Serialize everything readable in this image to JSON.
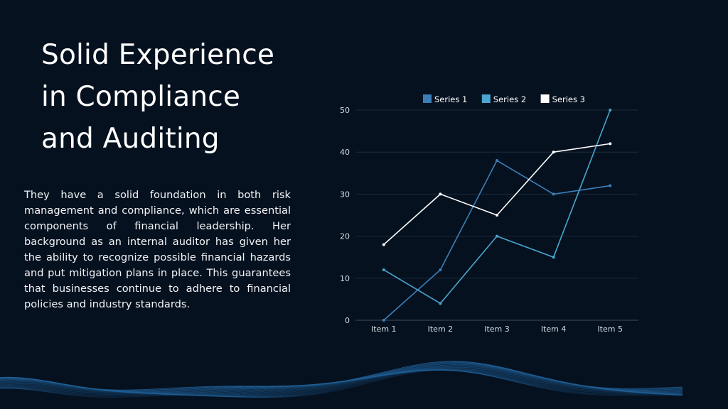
{
  "slide": {
    "title": "Solid Experience\nin Compliance\nand Auditing",
    "body": "They have a solid foundation in both risk management and compliance, which are essential components of financial leadership. Her background as an internal auditor has given her the ability to recognize possible financial hazards and put mitigation plans in place. This guarantees that businesses continue to adhere to financial policies and industry standards."
  },
  "chart_data": {
    "type": "line",
    "categories": [
      "Item 1",
      "Item 2",
      "Item 3",
      "Item 4",
      "Item 5"
    ],
    "series": [
      {
        "name": "Series 1",
        "values": [
          0,
          12,
          38,
          30,
          32
        ],
        "color": "#3b7fb8"
      },
      {
        "name": "Series 2",
        "values": [
          12,
          4,
          20,
          15,
          50
        ],
        "color": "#4aa6d0"
      },
      {
        "name": "Series 3",
        "values": [
          18,
          30,
          25,
          40,
          42
        ],
        "color": "#ffffff"
      }
    ],
    "ylim": [
      0,
      50
    ],
    "yticks": [
      0,
      10,
      20,
      30,
      40,
      50
    ],
    "grid": true,
    "legend": "top",
    "title": "",
    "xlabel": "",
    "ylabel": ""
  },
  "colors": {
    "background": "#06111f",
    "wave": "#1f5f96",
    "gridline": "#1c2a3b"
  }
}
